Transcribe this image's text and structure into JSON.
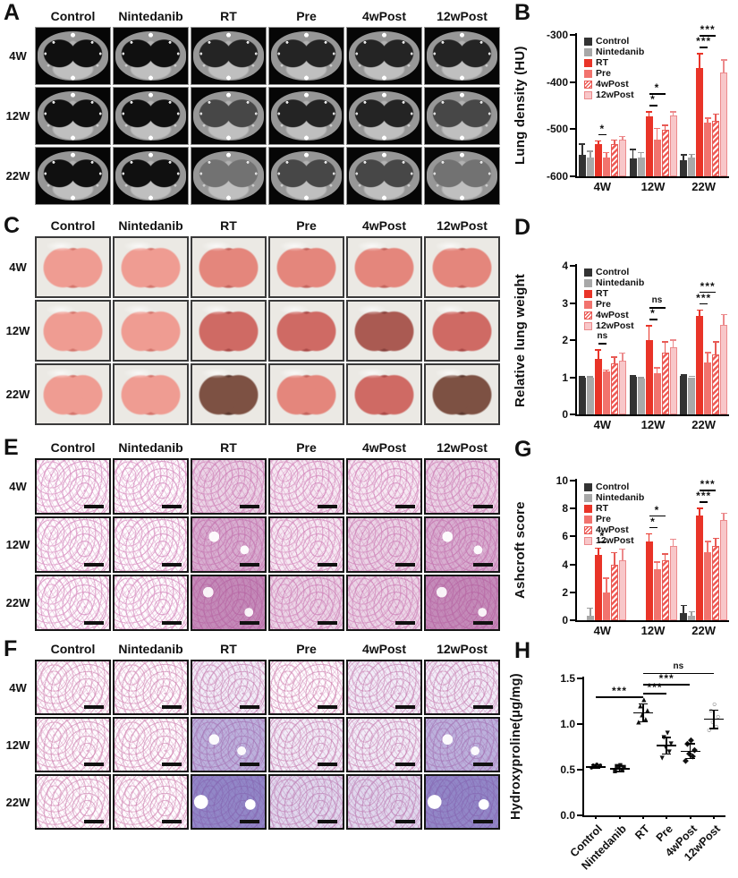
{
  "colors": {
    "control": "#333333",
    "nintedanib": "#a8a8a8",
    "rt": "#e93428",
    "pre": "#f2736e",
    "hatch_4wpost": "#ee5a55",
    "light_12wpost": "#f8c7c9",
    "significance": "#000000"
  },
  "panels": {
    "A": {
      "letter": "A",
      "type": "ct",
      "col_headers": [
        "Control",
        "Nintedanib",
        "RT",
        "Pre",
        "4wPost",
        "12wPost"
      ],
      "row_labels": [
        "4W",
        "12W",
        "22W"
      ],
      "severity": [
        [
          0,
          0,
          1,
          1,
          1,
          1
        ],
        [
          0,
          0,
          2,
          1,
          1,
          2
        ],
        [
          0,
          0,
          3,
          2,
          2,
          3
        ]
      ]
    },
    "B": {
      "letter": "B"
    },
    "C": {
      "letter": "C",
      "type": "gross",
      "col_headers": [
        "Control",
        "Nintedanib",
        "RT",
        "Pre",
        "4wPost",
        "12wPost"
      ],
      "row_labels": [
        "4W",
        "12W",
        "22W"
      ],
      "severity": [
        [
          0,
          0,
          1,
          1,
          1,
          1
        ],
        [
          0,
          0,
          2,
          2,
          3,
          2
        ],
        [
          0,
          0,
          4,
          1,
          2,
          4
        ]
      ]
    },
    "D": {
      "letter": "D"
    },
    "E": {
      "letter": "E",
      "type": "he",
      "col_headers": [
        "Control",
        "Nintedanib",
        "RT",
        "Pre",
        "4wPost",
        "12wPost"
      ],
      "row_labels": [
        "4W",
        "12W",
        "22W"
      ],
      "severity": [
        [
          0,
          0,
          2,
          1,
          1,
          2
        ],
        [
          0,
          0,
          3,
          1,
          2,
          3
        ],
        [
          0,
          0,
          4,
          2,
          2,
          4
        ]
      ]
    },
    "F": {
      "letter": "F",
      "type": "mt",
      "col_headers": [
        "Control",
        "Nintedanib",
        "RT",
        "Pre",
        "4wPost",
        "12wPost"
      ],
      "row_labels": [
        "4W",
        "12W",
        "22W"
      ],
      "severity": [
        [
          0,
          0,
          1,
          0,
          1,
          1
        ],
        [
          0,
          0,
          3,
          1,
          1,
          3
        ],
        [
          0,
          0,
          4,
          2,
          2,
          4
        ]
      ]
    },
    "G": {
      "letter": "G"
    },
    "H": {
      "letter": "H"
    }
  },
  "chart_data": [
    {
      "id": "B",
      "type": "bar",
      "ylabel": "Lung density (HU)",
      "categories": [
        "4W",
        "12W",
        "22W"
      ],
      "ylim": [
        -600,
        -300
      ],
      "yticks": [
        -300,
        -400,
        -500,
        -600
      ],
      "ytick_labels": [
        "-300",
        "-400",
        "-500",
        "-600"
      ],
      "legend_position": "top-left",
      "series": [
        {
          "name": "Control",
          "values": [
            -555,
            -562,
            -565
          ],
          "errors": [
            25,
            20,
            12
          ]
        },
        {
          "name": "Nintedanib",
          "values": [
            -560,
            -560,
            -560
          ],
          "errors": [
            15,
            12,
            8
          ]
        },
        {
          "name": "RT",
          "values": [
            -532,
            -472,
            -370
          ],
          "errors": [
            8,
            10,
            32
          ]
        },
        {
          "name": "Pre",
          "values": [
            -560,
            -522,
            -487
          ],
          "errors": [
            12,
            25,
            12
          ]
        },
        {
          "name": "4wPost",
          "values": [
            -532,
            -502,
            -482
          ],
          "errors": [
            10,
            12,
            15
          ]
        },
        {
          "name": "12wPost",
          "values": [
            -522,
            -470,
            -380
          ],
          "errors": [
            8,
            8,
            28
          ]
        }
      ],
      "significance": [
        {
          "group": 0,
          "from": "RT",
          "to": "Pre",
          "label": "*",
          "level": 0
        },
        {
          "group": 1,
          "from": "RT",
          "to": "Pre",
          "label": "*",
          "level": 0
        },
        {
          "group": 1,
          "from": "RT",
          "to": "4wPost",
          "label": "*",
          "level": 1
        },
        {
          "group": 2,
          "from": "RT",
          "to": "Pre",
          "label": "***",
          "level": 0
        },
        {
          "group": 2,
          "from": "RT",
          "to": "4wPost",
          "label": "***",
          "level": 1
        }
      ]
    },
    {
      "id": "D",
      "type": "bar",
      "ylabel": "Relative lung weight",
      "categories": [
        "4W",
        "12W",
        "22W"
      ],
      "ylim": [
        0,
        4
      ],
      "yticks": [
        0,
        1,
        2,
        3,
        4
      ],
      "ytick_labels": [
        "0",
        "1",
        "2",
        "3",
        "4"
      ],
      "legend_position": "top-left",
      "series": [
        {
          "name": "Control",
          "values": [
            1.0,
            1.02,
            1.03
          ],
          "errors": [
            0.03,
            0.04,
            0.05
          ]
        },
        {
          "name": "Nintedanib",
          "values": [
            1.0,
            0.97,
            1.0
          ],
          "errors": [
            0.03,
            0.04,
            0.04
          ]
        },
        {
          "name": "RT",
          "values": [
            1.5,
            2.0,
            2.65
          ],
          "errors": [
            0.25,
            0.4,
            0.18
          ]
        },
        {
          "name": "Pre",
          "values": [
            1.15,
            1.12,
            1.4
          ],
          "errors": [
            0.06,
            0.15,
            0.28
          ]
        },
        {
          "name": "4wPost",
          "values": [
            1.38,
            1.67,
            1.62
          ],
          "errors": [
            0.18,
            0.3,
            0.35
          ]
        },
        {
          "name": "12wPost",
          "values": [
            1.45,
            1.8,
            2.42
          ],
          "errors": [
            0.22,
            0.22,
            0.28
          ]
        }
      ],
      "significance": [
        {
          "group": 0,
          "from": "RT",
          "to": "Pre",
          "label": "ns",
          "level": 0
        },
        {
          "group": 1,
          "from": "RT",
          "to": "Pre",
          "label": "*",
          "level": 0
        },
        {
          "group": 1,
          "from": "RT",
          "to": "4wPost",
          "label": "ns",
          "level": 1
        },
        {
          "group": 2,
          "from": "RT",
          "to": "Pre",
          "label": "***",
          "level": 0
        },
        {
          "group": 2,
          "from": "RT",
          "to": "4wPost",
          "label": "***",
          "level": 1
        }
      ]
    },
    {
      "id": "G",
      "type": "bar",
      "ylabel": "Ashcroft score",
      "categories": [
        "4W",
        "12W",
        "22W"
      ],
      "ylim": [
        0,
        10
      ],
      "yticks": [
        0,
        2,
        4,
        6,
        8,
        10
      ],
      "ytick_labels": [
        "0",
        "2",
        "4",
        "6",
        "8",
        "10"
      ],
      "legend_position": "top-left",
      "series": [
        {
          "name": "Control",
          "values": [
            0,
            0,
            0.5
          ],
          "errors": [
            0,
            0,
            0.6
          ]
        },
        {
          "name": "Nintedanib",
          "values": [
            0.35,
            0,
            0.35
          ],
          "errors": [
            0.55,
            0,
            0.3
          ]
        },
        {
          "name": "RT",
          "values": [
            4.65,
            5.65,
            7.5
          ],
          "errors": [
            0.55,
            0.6,
            0.55
          ]
        },
        {
          "name": "Pre",
          "values": [
            2.0,
            3.65,
            4.85
          ],
          "errors": [
            1.05,
            0.55,
            0.85
          ]
        },
        {
          "name": "4wPost",
          "values": [
            4.0,
            4.3,
            5.35
          ],
          "errors": [
            0.9,
            0.5,
            0.55
          ]
        },
        {
          "name": "12wPost",
          "values": [
            4.3,
            5.3,
            7.15
          ],
          "errors": [
            0.85,
            0.55,
            0.55
          ]
        }
      ],
      "significance": [
        {
          "group": 0,
          "from": "RT",
          "to": "Pre",
          "label": "*",
          "level": 0
        },
        {
          "group": 1,
          "from": "RT",
          "to": "Pre",
          "label": "*",
          "level": 0
        },
        {
          "group": 1,
          "from": "RT",
          "to": "4wPost",
          "label": "*",
          "level": 1
        },
        {
          "group": 2,
          "from": "RT",
          "to": "Pre",
          "label": "***",
          "level": 0
        },
        {
          "group": 2,
          "from": "RT",
          "to": "4wPost",
          "label": "***",
          "level": 1
        }
      ]
    },
    {
      "id": "H",
      "type": "scatter",
      "ylabel": "Hydroxyproline(μg/mg)",
      "categories": [
        "Control",
        "Nintedanib",
        "RT",
        "Pre",
        "4wPost",
        "12wPost"
      ],
      "markers": [
        "circle-filled",
        "square-filled",
        "triangle-up-filled",
        "triangle-down-filled",
        "diamond-filled",
        "circle-open"
      ],
      "ylim": [
        0,
        1.5
      ],
      "yticks": [
        0,
        0.5,
        1,
        1.5
      ],
      "ytick_labels": [
        "0.0",
        "0.5",
        "1.0",
        "1.5"
      ],
      "points": [
        [
          0.52,
          0.53,
          0.54,
          0.55,
          0.55,
          0.56
        ],
        [
          0.48,
          0.5,
          0.52,
          0.53,
          0.54,
          0.55
        ],
        [
          1.02,
          1.05,
          1.1,
          1.15,
          1.2,
          1.26
        ],
        [
          0.63,
          0.7,
          0.75,
          0.78,
          0.85,
          0.9
        ],
        [
          0.6,
          0.65,
          0.68,
          0.72,
          0.78,
          0.82
        ],
        [
          0.93,
          0.97,
          1.02,
          1.08,
          1.15,
          1.22
        ]
      ],
      "means": [
        0.54,
        0.52,
        1.13,
        0.77,
        0.71,
        1.06
      ],
      "sds": [
        0.02,
        0.03,
        0.1,
        0.09,
        0.08,
        0.1
      ],
      "significance": [
        {
          "from": "Control",
          "to": "RT",
          "label": "***",
          "y": 1.3
        },
        {
          "from": "RT",
          "to": "Pre",
          "label": "***",
          "y": 1.34
        },
        {
          "from": "RT",
          "to": "4wPost",
          "label": "***",
          "y": 1.44
        },
        {
          "from": "RT",
          "to": "12wPost",
          "label": "ns",
          "y": 1.56
        }
      ]
    }
  ]
}
